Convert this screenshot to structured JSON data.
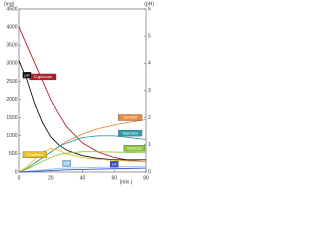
{
  "chart_data": {
    "type": "line",
    "y_label": "(mg)",
    "y2_label": "(pH)",
    "x_label": "(min.)",
    "x": [
      0,
      5,
      10,
      15,
      20,
      25,
      30,
      40,
      50,
      60,
      70,
      80
    ],
    "xlim": [
      0,
      80
    ],
    "xticks": [
      0,
      20,
      40,
      60,
      80
    ],
    "ylim": [
      0,
      4500
    ],
    "yticks": [
      0,
      500,
      1000,
      1500,
      2000,
      2500,
      3000,
      3500,
      4000,
      4500
    ],
    "y2lim": [
      0,
      6
    ],
    "y2ticks": [
      0,
      1,
      2,
      3,
      4,
      5,
      6
    ],
    "series": [
      {
        "name": "D-glucose",
        "color": "#b0202a",
        "label_at": 3,
        "values": [
          4000,
          3500,
          3000,
          2500,
          2000,
          1600,
          1250,
          800,
          550,
          400,
          320,
          280
        ]
      },
      {
        "name": "pH",
        "color": "#111111",
        "axis": "y2",
        "label_at": 1,
        "values": [
          4.1,
          3.4,
          2.5,
          1.8,
          1.3,
          1.0,
          0.8,
          0.6,
          0.5,
          0.45,
          0.45,
          0.45
        ]
      },
      {
        "name": "Sorbitol",
        "color": "#f08a3c",
        "label_at": 10,
        "values": [
          0,
          100,
          250,
          400,
          550,
          700,
          850,
          1050,
          1200,
          1300,
          1380,
          1450
        ]
      },
      {
        "name": "Mannitol",
        "color": "#2e9fb0",
        "label_at": 10,
        "values": [
          0,
          100,
          250,
          400,
          550,
          700,
          800,
          950,
          1000,
          1000,
          950,
          900
        ]
      },
      {
        "name": "Sorbose",
        "color": "#8cc63f",
        "label_at": 11,
        "values": [
          0,
          80,
          180,
          300,
          400,
          480,
          520,
          560,
          560,
          550,
          540,
          530
        ]
      },
      {
        "name": "Fructose",
        "color": "#e8c020",
        "label_at": 2,
        "values": [
          0,
          150,
          350,
          550,
          650,
          600,
          500,
          400,
          350,
          320,
          300,
          280
        ]
      },
      {
        "name": "GA",
        "color": "#8fc8f0",
        "label_at": 6,
        "values": [
          0,
          20,
          40,
          60,
          80,
          100,
          110,
          120,
          130,
          140,
          150,
          160
        ]
      },
      {
        "name": "LA",
        "color": "#3050c8",
        "label_at": 9,
        "values": [
          0,
          10,
          20,
          30,
          40,
          50,
          60,
          70,
          80,
          90,
          100,
          110
        ]
      }
    ]
  }
}
